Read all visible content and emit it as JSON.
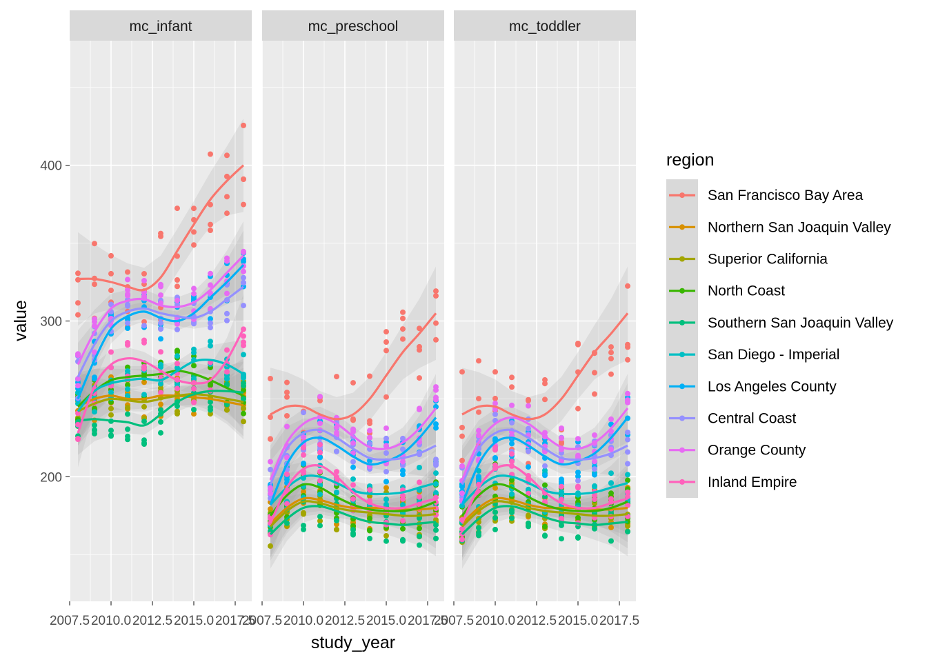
{
  "chart_data": {
    "type": "scatter",
    "smoothing": "loess",
    "facets": [
      "mc_infant",
      "mc_preschool",
      "mc_toddler"
    ],
    "xlabel": "study_year",
    "ylabel": "value",
    "x_ticks": [
      2007.5,
      2010.0,
      2012.5,
      2015.0,
      2017.5
    ],
    "x_tick_labels": [
      "2007.5",
      "2010.0",
      "2012.5",
      "2015.0",
      "2017.5"
    ],
    "y_ticks": [
      200,
      300,
      400
    ],
    "y_tick_labels": [
      "200",
      "300",
      "400"
    ],
    "xlim": [
      2007.5,
      2018.5
    ],
    "ylim": [
      120,
      480
    ],
    "x_years": [
      2008,
      2009,
      2010,
      2011,
      2012,
      2013,
      2014,
      2015,
      2016,
      2017,
      2018
    ],
    "grid": true,
    "legend": {
      "title": "region",
      "position": "right",
      "entries": [
        "San Francisco Bay Area",
        "Northern San Joaquin Valley",
        "Superior California",
        "North Coast",
        "Southern San Joaquin Valley",
        "San Diego - Imperial",
        "Los Angeles County",
        "Central Coast",
        "Orange County",
        "Inland Empire"
      ]
    },
    "series": [
      {
        "name": "San Francisco Bay Area",
        "color": "#F8766D",
        "trend": {
          "mc_infant": [
            327,
            327,
            325,
            322,
            320,
            328,
            345,
            362,
            378,
            390,
            400
          ],
          "mc_preschool": [
            240,
            245,
            245,
            240,
            237,
            240,
            250,
            265,
            280,
            292,
            305
          ],
          "mc_toddler": [
            240,
            245,
            245,
            240,
            237,
            240,
            250,
            265,
            280,
            292,
            305
          ]
        }
      },
      {
        "name": "Northern San Joaquin Valley",
        "color": "#D89000",
        "trend": {
          "mc_infant": [
            245,
            250,
            252,
            250,
            250,
            252,
            252,
            251,
            250,
            248,
            246
          ],
          "mc_preschool": [
            170,
            180,
            186,
            185,
            182,
            180,
            180,
            180,
            179,
            179,
            180
          ],
          "mc_toddler": [
            170,
            180,
            186,
            185,
            182,
            180,
            180,
            180,
            179,
            179,
            180
          ]
        }
      },
      {
        "name": "Superior California",
        "color": "#A3A500",
        "trend": {
          "mc_infant": [
            242,
            247,
            250,
            249,
            248,
            250,
            252,
            253,
            252,
            250,
            248
          ],
          "mc_preschool": [
            168,
            178,
            184,
            183,
            180,
            178,
            177,
            176,
            175,
            175,
            176
          ],
          "mc_toddler": [
            168,
            178,
            184,
            183,
            180,
            178,
            177,
            176,
            175,
            175,
            176
          ]
        }
      },
      {
        "name": "North Coast",
        "color": "#39B600",
        "trend": {
          "mc_infant": [
            245,
            255,
            262,
            264,
            265,
            266,
            268,
            266,
            262,
            257,
            252
          ],
          "mc_preschool": [
            175,
            188,
            195,
            193,
            187,
            182,
            179,
            178,
            178,
            180,
            184
          ],
          "mc_toddler": [
            175,
            188,
            195,
            193,
            187,
            182,
            179,
            178,
            178,
            180,
            184
          ]
        }
      },
      {
        "name": "Southern San Joaquin Valley",
        "color": "#00BF7D",
        "trend": {
          "mc_infant": [
            236,
            237,
            236,
            235,
            233,
            240,
            248,
            253,
            255,
            255,
            254
          ],
          "mc_preschool": [
            163,
            173,
            180,
            181,
            178,
            174,
            171,
            170,
            169,
            170,
            171
          ],
          "mc_toddler": [
            163,
            173,
            180,
            181,
            178,
            174,
            171,
            170,
            169,
            170,
            171
          ]
        }
      },
      {
        "name": "San Diego - Imperial",
        "color": "#00BFC4",
        "trend": {
          "mc_infant": [
            242,
            255,
            260,
            262,
            263,
            262,
            268,
            274,
            275,
            272,
            266
          ],
          "mc_preschool": [
            182,
            193,
            200,
            200,
            196,
            191,
            189,
            189,
            190,
            193,
            196
          ],
          "mc_toddler": [
            182,
            193,
            200,
            200,
            196,
            191,
            189,
            189,
            190,
            193,
            196
          ]
        }
      },
      {
        "name": "Los Angeles County",
        "color": "#00B0F6",
        "trend": {
          "mc_infant": [
            250,
            275,
            295,
            303,
            306,
            302,
            300,
            305,
            315,
            325,
            336
          ],
          "mc_preschool": [
            182,
            208,
            222,
            225,
            220,
            213,
            208,
            210,
            215,
            225,
            238
          ],
          "mc_toddler": [
            182,
            208,
            222,
            225,
            220,
            213,
            208,
            210,
            215,
            225,
            238
          ]
        }
      },
      {
        "name": "Central Coast",
        "color": "#9590FF",
        "trend": {
          "mc_infant": [
            264,
            285,
            300,
            306,
            308,
            305,
            303,
            302,
            306,
            314,
            322
          ],
          "mc_preschool": [
            195,
            218,
            228,
            230,
            225,
            218,
            212,
            211,
            212,
            215,
            220
          ],
          "mc_toddler": [
            195,
            218,
            228,
            230,
            225,
            218,
            212,
            211,
            212,
            215,
            220
          ]
        }
      },
      {
        "name": "Orange County",
        "color": "#E76BF3",
        "trend": {
          "mc_infant": [
            272,
            293,
            308,
            313,
            314,
            310,
            309,
            312,
            320,
            331,
            342
          ],
          "mc_preschool": [
            198,
            222,
            234,
            238,
            234,
            226,
            219,
            218,
            222,
            231,
            244
          ],
          "mc_toddler": [
            198,
            222,
            234,
            238,
            234,
            226,
            219,
            218,
            222,
            231,
            244
          ]
        }
      },
      {
        "name": "Inland Empire",
        "color": "#FF62BC",
        "trend": {
          "mc_infant": [
            228,
            258,
            272,
            276,
            274,
            268,
            262,
            260,
            262,
            275,
            295
          ],
          "mc_preschool": [
            170,
            193,
            205,
            207,
            200,
            190,
            183,
            180,
            180,
            183,
            186
          ],
          "mc_toddler": [
            170,
            193,
            205,
            207,
            200,
            190,
            183,
            180,
            180,
            183,
            186
          ]
        }
      }
    ]
  }
}
